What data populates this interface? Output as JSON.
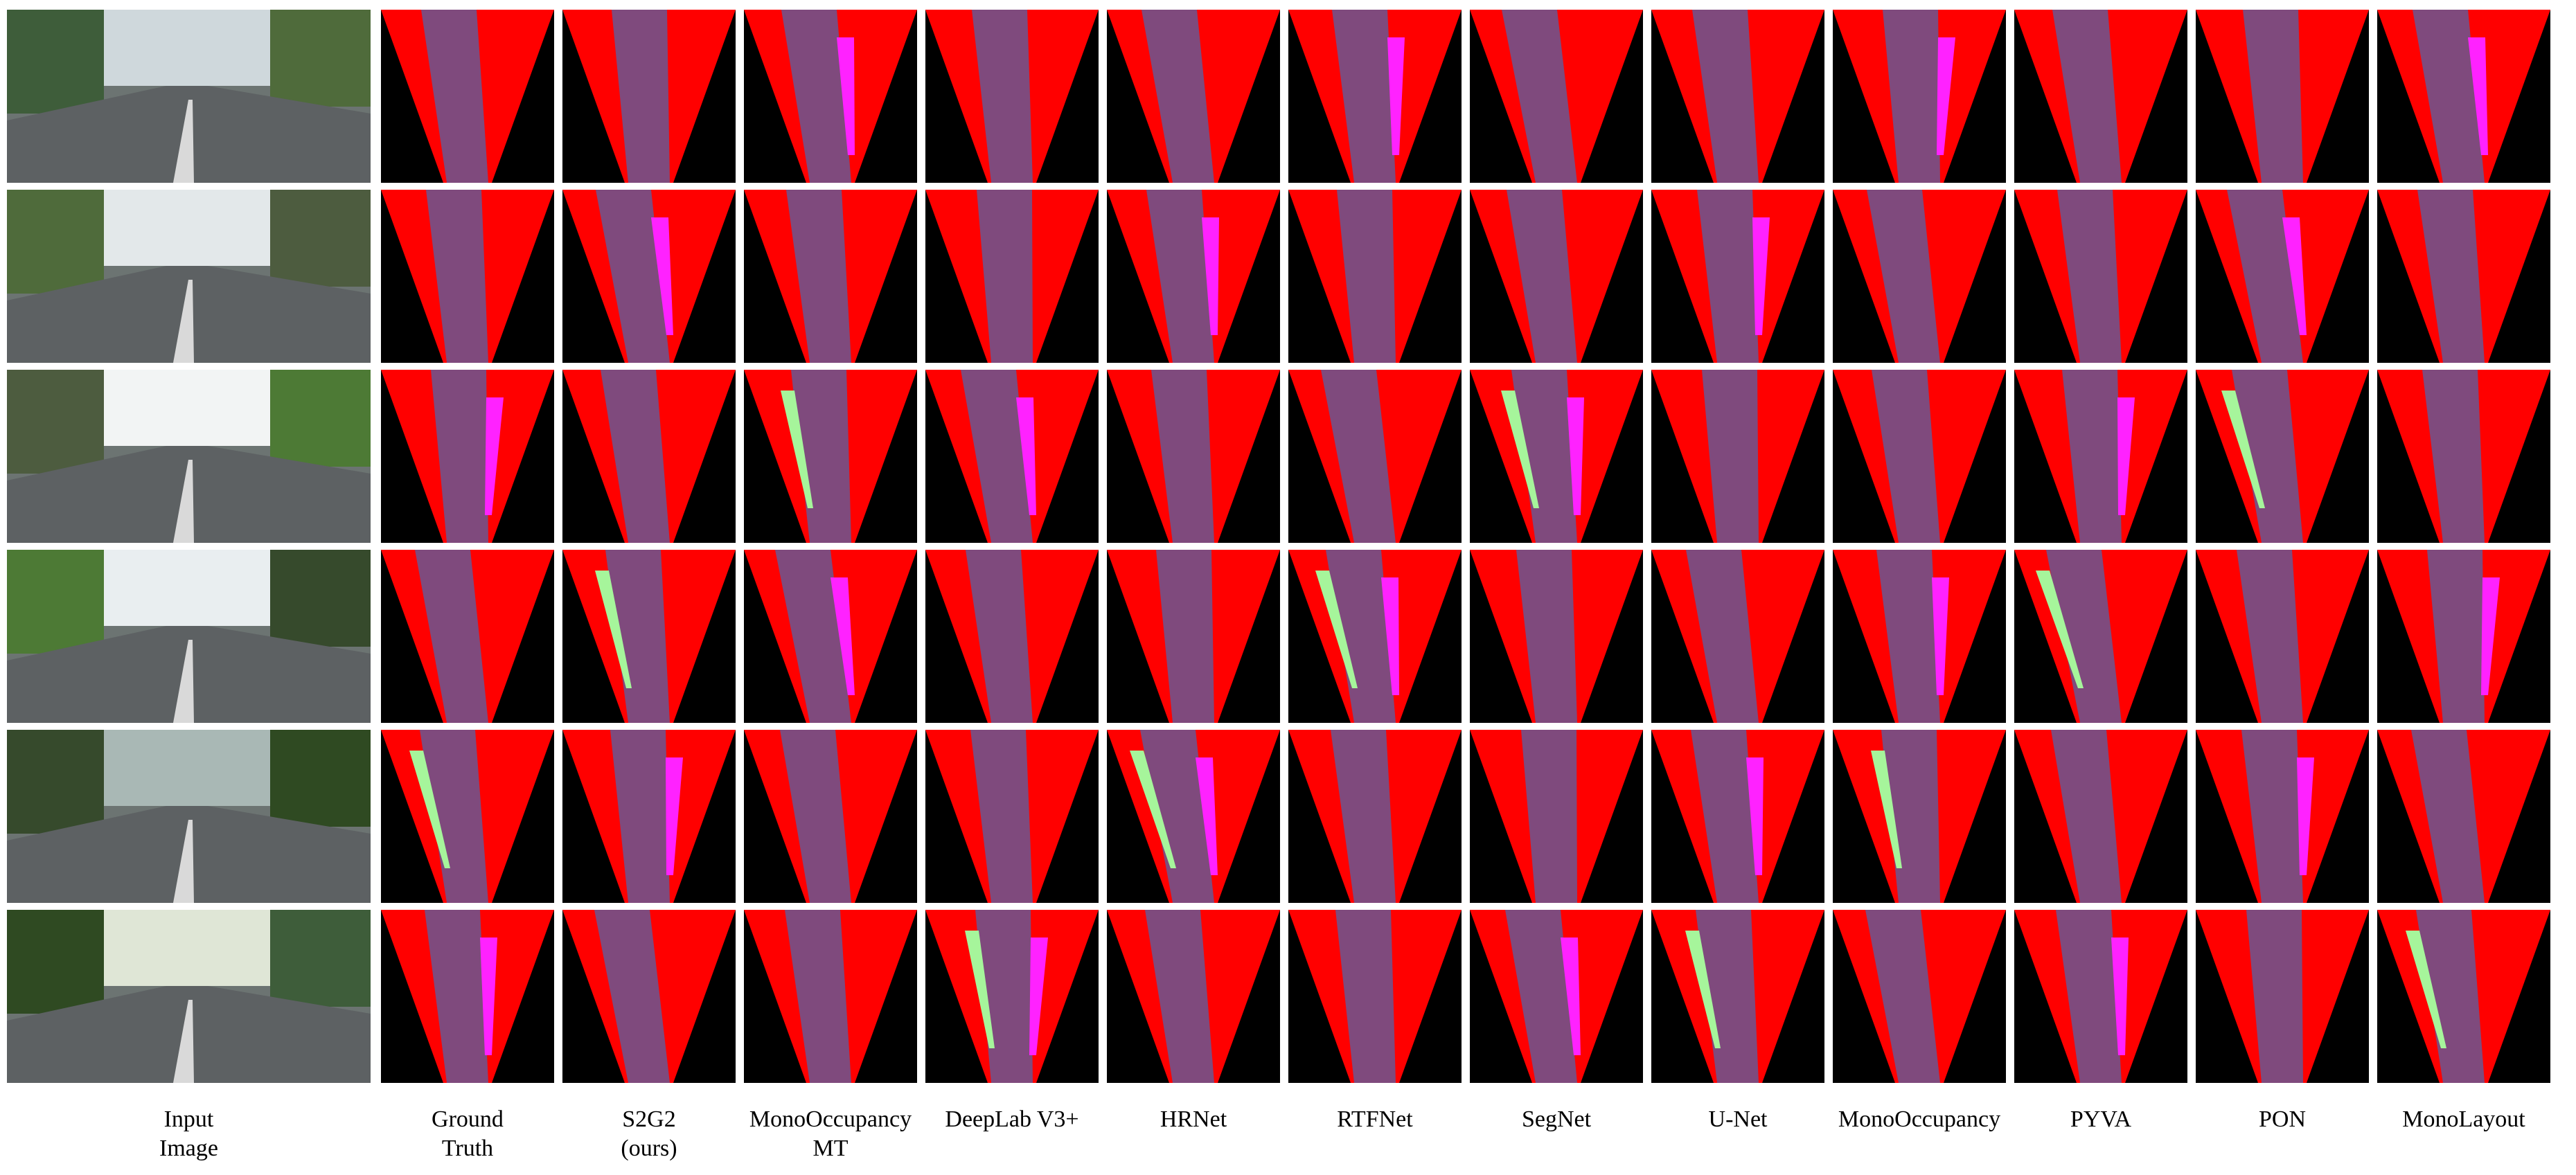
{
  "figure": {
    "columns": [
      {
        "id": "input",
        "line1": "Input",
        "line2": "Image"
      },
      {
        "id": "gt",
        "line1": "Ground",
        "line2": "Truth"
      },
      {
        "id": "s2g2",
        "line1": "S2G2",
        "line2": "(ours)"
      },
      {
        "id": "monoocc-mt",
        "line1": "MonoOccupancy",
        "line2": "MT"
      },
      {
        "id": "deeplab",
        "line1": "DeepLab V3+",
        "line2": ""
      },
      {
        "id": "hrnet",
        "line1": "HRNet",
        "line2": ""
      },
      {
        "id": "rtfnet",
        "line1": "RTFNet",
        "line2": ""
      },
      {
        "id": "segnet",
        "line1": "SegNet",
        "line2": ""
      },
      {
        "id": "unet",
        "line1": "U-Net",
        "line2": ""
      },
      {
        "id": "monoocc",
        "line1": "MonoOccupancy",
        "line2": ""
      },
      {
        "id": "pyva",
        "line1": "PYVA",
        "line2": ""
      },
      {
        "id": "pon",
        "line1": "PON",
        "line2": ""
      },
      {
        "id": "monolayout",
        "line1": "MonoLayout",
        "line2": ""
      }
    ],
    "colors": {
      "background": "#000000",
      "non_road": "#ff0000",
      "road": "#7f4a7d",
      "sidewalk": "#ff22ff",
      "vegetation": "#a6f59b",
      "unknown": "#000000"
    },
    "rows": 6
  }
}
